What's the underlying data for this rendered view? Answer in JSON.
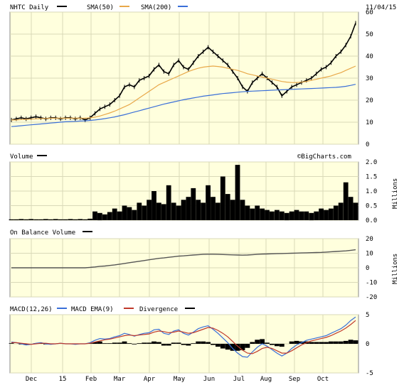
{
  "header": {
    "symbol_label": "NHTC Daily",
    "sma50_label": "SMA(50)",
    "sma200_label": "SMA(200)",
    "date": "11/04/15",
    "watermark": "©BigCharts.com"
  },
  "panels": {
    "volume_label": "Volume",
    "volume_units": "Millions",
    "obv_label": "On Balance Volume",
    "obv_units": "Millions",
    "macd_label": "MACD(12,26)",
    "macd_ema_label": "MACD EMA(9)",
    "divergence_label": "Divergence"
  },
  "colors": {
    "price": "#000000",
    "sma50": "#e8a84a",
    "sma200": "#3a6fd8",
    "macd": "#3a6fd8",
    "macd_ema": "#c0392b",
    "panel_bg": "#ffffdd",
    "obv": "#555555"
  },
  "chart_data": [
    {
      "type": "line",
      "title": "NHTC Daily",
      "x_ticks": [
        "Dec",
        "15",
        "Feb",
        "Mar",
        "Apr",
        "May",
        "Jun",
        "Jul",
        "Aug",
        "Sep",
        "Oct"
      ],
      "y_ticks": [
        0,
        10,
        20,
        30,
        40,
        50,
        60
      ],
      "ylim": [
        0,
        60
      ],
      "series": [
        {
          "name": "NHTC Daily",
          "values": [
            11,
            11.5,
            12,
            11.5,
            12,
            12.5,
            12,
            11.5,
            12,
            12,
            11.5,
            12,
            12,
            11.5,
            12,
            11,
            12,
            14,
            16,
            17,
            18,
            20,
            22,
            26,
            27,
            26,
            29,
            30,
            31,
            34,
            36,
            33,
            32,
            36,
            38,
            35,
            34,
            37,
            40,
            42,
            44,
            42,
            40,
            38,
            36,
            33,
            30,
            26,
            24,
            28,
            30,
            32,
            30,
            28,
            26,
            22,
            24,
            26,
            27,
            28,
            29,
            30,
            32,
            34,
            35,
            37,
            40,
            42,
            45,
            49,
            55
          ]
        },
        {
          "name": "SMA(50)",
          "values": [
            11,
            11,
            11.2,
            11.3,
            11.4,
            11.5,
            11.6,
            11.7,
            11.8,
            11.8,
            11.8,
            11.8,
            11.8,
            11.8,
            11.8,
            11.8,
            12,
            12.3,
            12.8,
            13.5,
            14.2,
            15,
            16,
            17,
            18,
            19.5,
            21,
            22.5,
            24,
            25.5,
            27,
            28,
            29,
            30,
            31,
            32,
            33,
            33.8,
            34.5,
            35,
            35.3,
            35.5,
            35.3,
            35,
            34.5,
            34,
            33.5,
            32.8,
            32,
            31.5,
            31,
            30.5,
            30,
            29.5,
            29,
            28.5,
            28.2,
            28,
            28,
            28.2,
            28.5,
            29,
            29.5,
            30,
            30.5,
            31,
            31.8,
            32.5,
            33.5,
            34.5,
            35.5
          ]
        },
        {
          "name": "SMA(200)",
          "values": [
            8,
            8.2,
            8.4,
            8.6,
            8.8,
            9,
            9.2,
            9.4,
            9.6,
            9.8,
            10,
            10.2,
            10.3,
            10.4,
            10.5,
            10.6,
            10.8,
            11,
            11.3,
            11.6,
            12,
            12.4,
            12.9,
            13.4,
            14,
            14.6,
            15.2,
            15.8,
            16.4,
            17,
            17.6,
            18.2,
            18.7,
            19.2,
            19.7,
            20.2,
            20.6,
            21,
            21.4,
            21.8,
            22.1,
            22.4,
            22.7,
            23,
            23.2,
            23.4,
            23.6,
            23.8,
            24,
            24.1,
            24.2,
            24.3,
            24.4,
            24.5,
            24.6,
            24.7,
            24.8,
            24.9,
            25,
            25.1,
            25.2,
            25.3,
            25.4,
            25.5,
            25.6,
            25.7,
            25.8,
            26,
            26.3,
            26.7,
            27.2
          ]
        }
      ]
    },
    {
      "type": "bar",
      "title": "Volume",
      "ylabel": "Millions",
      "y_ticks": [
        0.0,
        0.5,
        1.0,
        1.5,
        2.0
      ],
      "ylim": [
        0,
        2.0
      ],
      "values": [
        0.03,
        0.03,
        0.04,
        0.03,
        0.04,
        0.03,
        0.03,
        0.04,
        0.03,
        0.04,
        0.03,
        0.03,
        0.04,
        0.03,
        0.04,
        0.03,
        0.05,
        0.3,
        0.25,
        0.2,
        0.28,
        0.4,
        0.3,
        0.5,
        0.45,
        0.35,
        0.6,
        0.5,
        0.7,
        1.0,
        0.6,
        0.55,
        1.2,
        0.6,
        0.5,
        0.7,
        0.8,
        1.1,
        0.7,
        0.6,
        1.2,
        0.8,
        0.6,
        1.5,
        0.9,
        0.7,
        1.9,
        0.7,
        0.5,
        0.4,
        0.5,
        0.4,
        0.35,
        0.3,
        0.35,
        0.3,
        0.25,
        0.3,
        0.35,
        0.3,
        0.3,
        0.25,
        0.3,
        0.4,
        0.35,
        0.4,
        0.5,
        0.6,
        1.3,
        0.8,
        0.6
      ]
    },
    {
      "type": "line",
      "title": "On Balance Volume",
      "ylabel": "Millions",
      "y_ticks": [
        -20,
        -10,
        0,
        10,
        20
      ],
      "ylim": [
        -20,
        20
      ],
      "values": [
        0,
        0,
        0,
        0,
        0,
        0,
        0,
        0,
        0,
        0,
        0,
        0,
        0,
        0,
        0,
        0,
        0.3,
        0.6,
        1,
        1.2,
        1.6,
        2,
        2.5,
        3,
        3.5,
        4,
        4.5,
        5,
        5.5,
        6,
        6.5,
        6.8,
        7.2,
        7.6,
        8,
        8.2,
        8.5,
        8.8,
        9,
        9.2,
        9.3,
        9.3,
        9.2,
        9.1,
        9,
        8.9,
        8.8,
        8.7,
        8.8,
        9,
        9.2,
        9.4,
        9.5,
        9.6,
        9.7,
        9.8,
        9.9,
        10,
        10.1,
        10.2,
        10.3,
        10.4,
        10.5,
        10.6,
        10.8,
        11,
        11.2,
        11.4,
        11.6,
        12,
        12.4
      ]
    },
    {
      "type": "line",
      "title": "MACD(12,26)",
      "y_ticks": [
        -5,
        0,
        5
      ],
      "ylim": [
        -5,
        5
      ],
      "series": [
        {
          "name": "MACD(12,26)",
          "values": [
            0.3,
            0.2,
            0,
            -0.2,
            -0.1,
            0.1,
            0.2,
            0,
            -0.1,
            0,
            0.1,
            0,
            0,
            -0.1,
            0,
            0,
            0.2,
            0.6,
            0.9,
            0.8,
            0.9,
            1.2,
            1.4,
            1.8,
            1.6,
            1.3,
            1.6,
            1.8,
            1.9,
            2.4,
            2.5,
            1.8,
            1.6,
            2.2,
            2.4,
            1.8,
            1.5,
            2,
            2.6,
            2.9,
            3.1,
            2.5,
            1.8,
            1,
            0.2,
            -0.8,
            -1.6,
            -2.2,
            -2.3,
            -1.4,
            -0.6,
            0,
            -0.4,
            -1,
            -1.6,
            -2.1,
            -1.6,
            -0.8,
            -0.2,
            0.2,
            0.6,
            0.8,
            1,
            1.2,
            1.4,
            1.8,
            2.2,
            2.6,
            3.2,
            4,
            4.6
          ]
        },
        {
          "name": "MACD EMA(9)",
          "values": [
            0.2,
            0.2,
            0.1,
            0,
            -0.1,
            0,
            0.1,
            0.1,
            0,
            0,
            0.1,
            0,
            0,
            0,
            0,
            0,
            0.1,
            0.3,
            0.5,
            0.7,
            0.8,
            1,
            1.2,
            1.4,
            1.5,
            1.4,
            1.5,
            1.6,
            1.7,
            2,
            2.2,
            2.1,
            1.9,
            2,
            2.2,
            2,
            1.8,
            1.9,
            2.2,
            2.5,
            2.8,
            2.7,
            2.3,
            1.8,
            1.2,
            0.4,
            -0.4,
            -1.1,
            -1.6,
            -1.7,
            -1.3,
            -0.8,
            -0.6,
            -0.8,
            -1.2,
            -1.6,
            -1.6,
            -1.2,
            -0.7,
            -0.2,
            0.2,
            0.5,
            0.7,
            0.9,
            1.1,
            1.4,
            1.8,
            2.2,
            2.7,
            3.3,
            4
          ]
        },
        {
          "name": "Divergence",
          "values": [
            0.1,
            0,
            -0.1,
            -0.2,
            0,
            0.1,
            0.1,
            -0.1,
            -0.1,
            0,
            0,
            0,
            0,
            -0.1,
            0,
            0,
            0.1,
            0.3,
            0.4,
            0.1,
            0.1,
            0.2,
            0.2,
            0.4,
            0.1,
            -0.1,
            0.1,
            0.2,
            0.2,
            0.4,
            0.3,
            -0.3,
            -0.3,
            0.2,
            0.2,
            -0.2,
            -0.3,
            0.1,
            0.4,
            0.4,
            0.3,
            -0.2,
            -0.5,
            -0.8,
            -1,
            -1.2,
            -1.2,
            -1.1,
            -0.7,
            0.3,
            0.7,
            0.8,
            0.2,
            -0.2,
            -0.4,
            -0.5,
            0,
            0.4,
            0.5,
            0.4,
            0.4,
            0.3,
            0.3,
            0.3,
            0.3,
            0.4,
            0.4,
            0.4,
            0.5,
            0.7,
            0.6
          ]
        }
      ]
    }
  ]
}
